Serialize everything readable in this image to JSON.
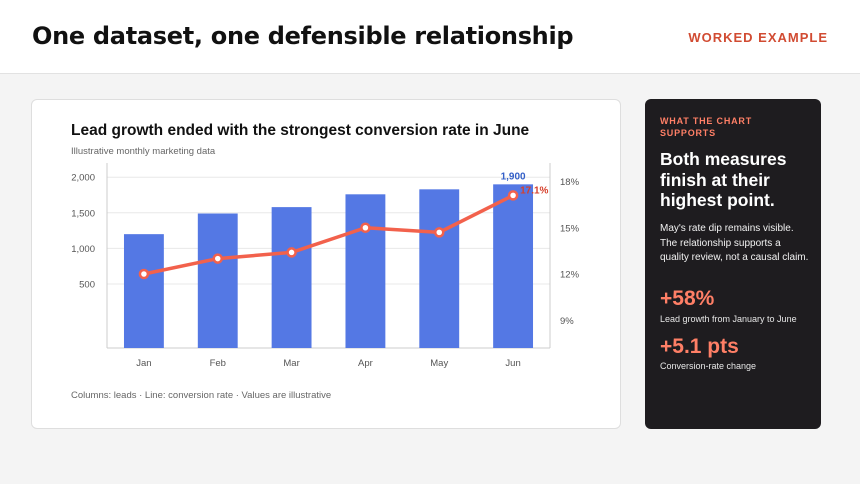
{
  "header": {
    "title": "One dataset, one defensible relationship",
    "tag": "WORKED EXAMPLE"
  },
  "card": {
    "subtitle": "Illustrative monthly marketing data",
    "footnote": "Columns: leads · Line: conversion rate · Values are illustrative"
  },
  "sidebar": {
    "kicker": "WHAT THE CHART SUPPORTS",
    "headline": "Both measures finish at their highest point.",
    "body": "May's rate dip remains visible. The relationship supports a quality review, not a causal claim.",
    "stat1": {
      "value": "+58%",
      "label": "Lead growth from January to June"
    },
    "stat2": {
      "value": "+5.1 pts",
      "label": "Conversion-rate change"
    }
  },
  "colors": {
    "accent": "#d14b32",
    "accent_light": "#ff7f66",
    "bar": "#5478e4",
    "line": "#f2614c",
    "bar_label": "#3460c8"
  },
  "chart_data": {
    "type": "bar",
    "title": "Lead growth ended with the strongest conversion rate in June",
    "categories": [
      "Jan",
      "Feb",
      "Mar",
      "Apr",
      "May",
      "Jun"
    ],
    "series": [
      {
        "type": "bar",
        "axis": "left",
        "values": [
          1200,
          1490,
          1580,
          1760,
          1830,
          1900
        ]
      },
      {
        "type": "line",
        "axis": "right",
        "values": [
          12.0,
          13.0,
          13.4,
          15.0,
          14.7,
          17.1
        ]
      }
    ],
    "y_left": {
      "ticks": [
        "500",
        "1,000",
        "1,500",
        "2,000"
      ],
      "range": [
        -400,
        2200
      ]
    },
    "y_right": {
      "ticks": [
        "9%",
        "12%",
        "15%",
        "18%"
      ],
      "range": [
        7.2,
        19.2
      ]
    },
    "data_labels": {
      "bar_last": "1,900",
      "line_last": "17.1%"
    },
    "grid": true
  }
}
